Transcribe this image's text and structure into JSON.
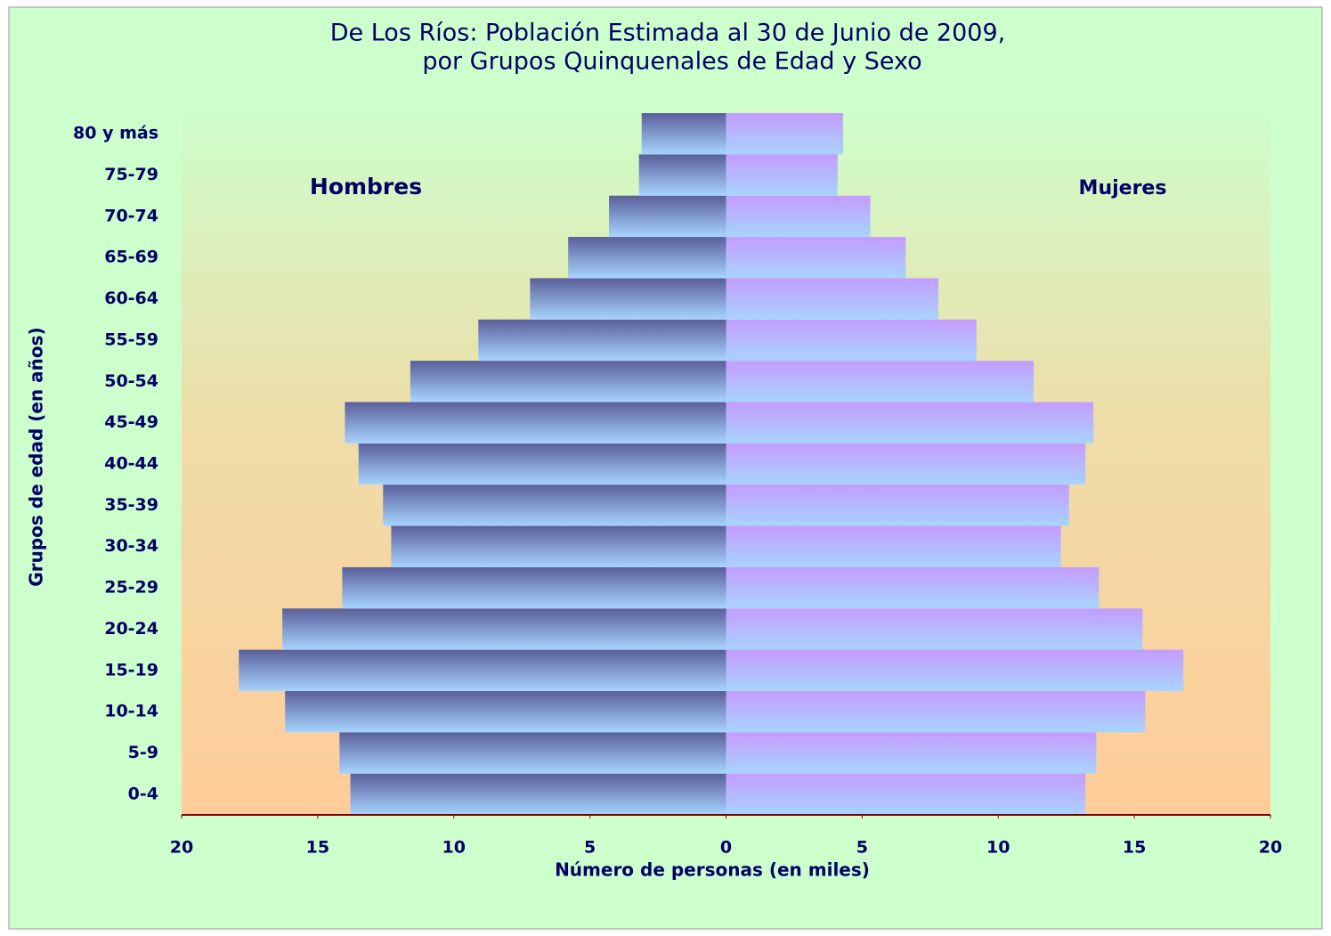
{
  "chart_data": {
    "type": "population-pyramid",
    "title": [
      "De Los Ríos: Población Estimada al 30 de Junio de 2009,",
      "por Grupos Quinquenales de Edad y Sexo"
    ],
    "xlabel": "Número de personas (en miles)",
    "ylabel": "Grupos de edad (en años)",
    "annotations": [
      "Hombres",
      "Mujeres"
    ],
    "categories": [
      "0-4",
      "5-9",
      "10-14",
      "15-19",
      "20-24",
      "25-29",
      "30-34",
      "35-39",
      "40-44",
      "45-49",
      "50-54",
      "55-59",
      "60-64",
      "65-69",
      "70-74",
      "75-79",
      "80 y más"
    ],
    "series": [
      {
        "name": "Hombres",
        "color": "#5a5f9a",
        "values": [
          -13.8,
          -14.2,
          -16.2,
          -17.9,
          -16.3,
          -14.1,
          -12.3,
          -12.6,
          -13.5,
          -14.0,
          -11.6,
          -9.1,
          -7.2,
          -5.8,
          -4.3,
          -3.2,
          -3.1
        ]
      },
      {
        "name": "Mujeres",
        "color": "#c49cff",
        "values": [
          13.2,
          13.6,
          15.4,
          16.8,
          15.3,
          13.7,
          12.3,
          12.6,
          13.2,
          13.5,
          11.3,
          9.2,
          7.8,
          6.6,
          5.3,
          4.1,
          4.3
        ]
      }
    ],
    "xlim": [
      -20,
      20
    ],
    "xticks": [
      {
        "value": -20,
        "label": "20"
      },
      {
        "value": -15,
        "label": "15"
      },
      {
        "value": -10,
        "label": "10"
      },
      {
        "value": -5,
        "label": "5"
      },
      0,
      5,
      10,
      15,
      20
    ]
  }
}
